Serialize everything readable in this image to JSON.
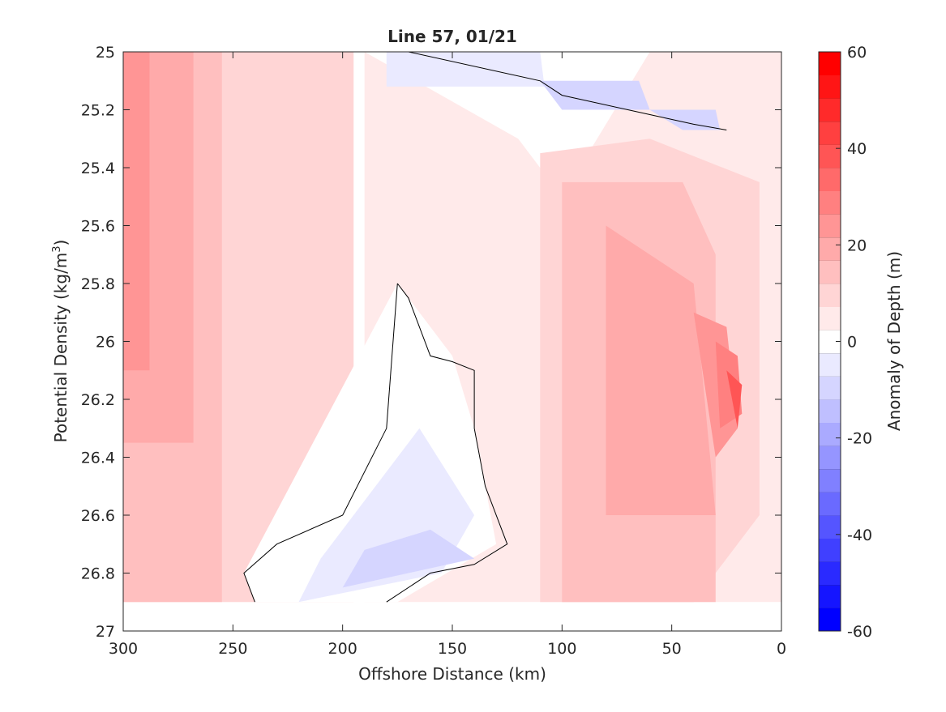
{
  "chart_data": {
    "type": "heatmap",
    "title": "Line 57, 01/21",
    "xlabel": "Offshore Distance (km)",
    "ylabel": "Potential Density (kg/m",
    "ylabel_sup": "3",
    "ylabel_close": ")",
    "xlim": [
      300,
      0
    ],
    "ylim": [
      25,
      27
    ],
    "x_reversed": true,
    "y_reversed": true,
    "grid": false,
    "x_ticks": [
      "300",
      "250",
      "200",
      "150",
      "100",
      "50",
      "0"
    ],
    "x_tick_values": [
      300,
      250,
      200,
      150,
      100,
      50,
      0
    ],
    "y_ticks": [
      "25",
      "25.2",
      "25.4",
      "25.6",
      "25.8",
      "26",
      "26.2",
      "26.4",
      "26.6",
      "26.8",
      "27"
    ],
    "y_tick_values": [
      25,
      25.2,
      25.4,
      25.6,
      25.8,
      26,
      26.2,
      26.4,
      26.6,
      26.8,
      27
    ],
    "colorbar": {
      "label": "Anomaly of Depth (m)",
      "range": [
        -60,
        60
      ],
      "levels": [
        -60,
        -55,
        -50,
        -45,
        -40,
        -35,
        -30,
        -25,
        -20,
        -15,
        -10,
        -5,
        0,
        5,
        10,
        15,
        20,
        25,
        30,
        35,
        40,
        45,
        50,
        55,
        60
      ],
      "ticks": [
        "-60",
        "-40",
        "-20",
        "0",
        "20",
        "40",
        "60"
      ],
      "tick_values": [
        -60,
        -40,
        -20,
        0,
        20,
        40,
        60
      ],
      "colors": [
        "#0000ff",
        "#1515ff",
        "#2a2aff",
        "#4040ff",
        "#5555ff",
        "#6a6aff",
        "#8080ff",
        "#9595ff",
        "#aaaaff",
        "#bfbfff",
        "#d5d5ff",
        "#eaeaff",
        "#ffffff",
        "#ffeaea",
        "#ffd5d5",
        "#ffbfbf",
        "#ffaaaa",
        "#ff9595",
        "#ff8080",
        "#ff6a6a",
        "#ff5555",
        "#ff4040",
        "#ff2a2a",
        "#ff1515",
        "#ff0000"
      ]
    },
    "filled_regions": [
      {
        "level": 10,
        "points": [
          [
            300,
            25
          ],
          [
            195,
            25
          ],
          [
            195,
            26.9
          ],
          [
            300,
            26.9
          ]
        ]
      },
      {
        "level": 15,
        "points": [
          [
            300,
            25
          ],
          [
            255,
            25
          ],
          [
            255,
            26.9
          ],
          [
            300,
            26.9
          ]
        ]
      },
      {
        "level": 20,
        "points": [
          [
            300,
            25
          ],
          [
            268,
            25
          ],
          [
            268,
            26.35
          ],
          [
            300,
            26.35
          ]
        ]
      },
      {
        "level": 25,
        "points": [
          [
            300,
            25
          ],
          [
            288,
            25
          ],
          [
            288,
            26.1
          ],
          [
            300,
            26.1
          ]
        ]
      },
      {
        "level": 5,
        "points": [
          [
            190,
            25.0
          ],
          [
            120,
            25.3
          ],
          [
            100,
            25.5
          ],
          [
            60,
            25.0
          ],
          [
            0,
            25.0
          ],
          [
            0,
            26.9
          ],
          [
            40,
            26.9
          ],
          [
            190,
            26.9
          ]
        ]
      },
      {
        "level": 10,
        "points": [
          [
            110,
            25.35
          ],
          [
            60,
            25.3
          ],
          [
            10,
            25.45
          ],
          [
            10,
            26.6
          ],
          [
            40,
            26.9
          ],
          [
            110,
            26.9
          ]
        ]
      },
      {
        "level": 15,
        "points": [
          [
            100,
            25.45
          ],
          [
            45,
            25.45
          ],
          [
            30,
            25.7
          ],
          [
            30,
            26.9
          ],
          [
            100,
            26.9
          ]
        ]
      },
      {
        "level": 20,
        "points": [
          [
            80,
            25.6
          ],
          [
            40,
            25.8
          ],
          [
            30,
            26.6
          ],
          [
            80,
            26.6
          ]
        ]
      },
      {
        "level": 25,
        "points": [
          [
            40,
            25.9
          ],
          [
            25,
            25.95
          ],
          [
            20,
            26.3
          ],
          [
            30,
            26.4
          ]
        ]
      },
      {
        "level": 30,
        "points": [
          [
            30,
            26.0
          ],
          [
            20,
            26.05
          ],
          [
            18,
            26.25
          ],
          [
            28,
            26.3
          ]
        ]
      },
      {
        "level": 40,
        "points": [
          [
            25,
            26.1
          ],
          [
            18,
            26.15
          ],
          [
            20,
            26.3
          ]
        ]
      },
      {
        "level": 0,
        "points": [
          [
            175,
            25.8
          ],
          [
            150,
            26.05
          ],
          [
            140,
            26.3
          ],
          [
            130,
            26.7
          ],
          [
            175,
            26.9
          ],
          [
            240,
            26.9
          ],
          [
            245,
            26.8
          ]
        ]
      },
      {
        "level": -5,
        "points": [
          [
            165,
            26.3
          ],
          [
            140,
            26.6
          ],
          [
            155,
            26.8
          ],
          [
            220,
            26.9
          ],
          [
            210,
            26.75
          ]
        ]
      },
      {
        "level": -10,
        "points": [
          [
            160,
            26.65
          ],
          [
            140,
            26.75
          ],
          [
            200,
            26.85
          ],
          [
            190,
            26.72
          ]
        ]
      },
      {
        "level": -5,
        "points": [
          [
            180,
            25.0
          ],
          [
            110,
            25.0
          ],
          [
            108,
            25.12
          ],
          [
            180,
            25.12
          ]
        ]
      },
      {
        "level": -10,
        "points": [
          [
            110,
            25.1
          ],
          [
            65,
            25.1
          ],
          [
            60,
            25.2
          ],
          [
            100,
            25.2
          ]
        ]
      },
      {
        "level": -10,
        "points": [
          [
            60,
            25.2
          ],
          [
            30,
            25.2
          ],
          [
            28,
            25.27
          ],
          [
            45,
            25.27
          ]
        ]
      }
    ],
    "contour_zero": [
      [
        [
          175,
          25.8
        ],
        [
          170,
          25.85
        ],
        [
          160,
          26.05
        ],
        [
          150,
          26.07
        ],
        [
          140,
          26.1
        ],
        [
          140,
          26.3
        ],
        [
          135,
          26.5
        ],
        [
          125,
          26.7
        ],
        [
          140,
          26.77
        ],
        [
          160,
          26.8
        ],
        [
          180,
          26.9
        ]
      ],
      [
        [
          240,
          26.9
        ],
        [
          245,
          26.8
        ],
        [
          230,
          26.7
        ],
        [
          200,
          26.6
        ],
        [
          180,
          26.3
        ],
        [
          175,
          25.8
        ]
      ],
      [
        [
          170,
          25.0
        ],
        [
          110,
          25.1
        ],
        [
          100,
          25.15
        ],
        [
          70,
          25.2
        ],
        [
          40,
          25.25
        ],
        [
          25,
          25.27
        ]
      ]
    ]
  }
}
